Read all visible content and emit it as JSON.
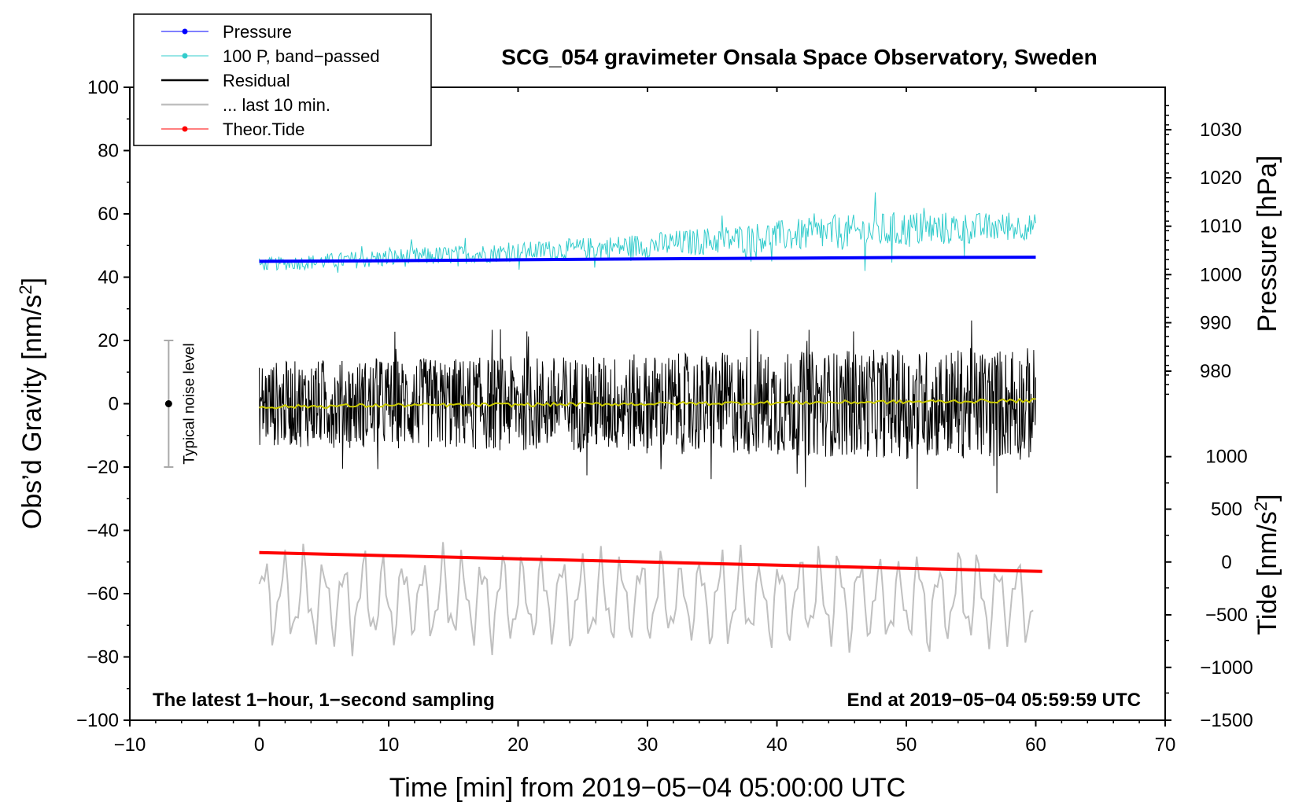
{
  "chart_data": {
    "type": "line",
    "title": "SCG_054 gravimeter Onsala Space Observatory, Sweden",
    "xlabel": "Time [min] from 2019−05−04 05:00:00 UTC",
    "ylabel": "Obs’d Gravity [nm/s",
    "ylabel_sup": "2",
    "ylabel_end": "]",
    "y2label": "Pressure [hPa]",
    "y3label": "Tide [nm/s",
    "y3label_sup": "2",
    "y3label_end": "]",
    "xlim": [
      -10,
      70
    ],
    "ylim": [
      -100,
      100
    ],
    "x_ticks": [
      -10,
      0,
      10,
      20,
      30,
      40,
      50,
      60,
      70
    ],
    "x_tick_labels": [
      "−10",
      "0",
      "10",
      "20",
      "30",
      "40",
      "50",
      "60",
      "70"
    ],
    "y_ticks": [
      100,
      80,
      60,
      40,
      20,
      0,
      -20,
      -40,
      -60,
      -80,
      -100
    ],
    "y_tick_labels": [
      "100",
      "80",
      "60",
      "40",
      "20",
      "0",
      "−20",
      "−40",
      "−60",
      "−80",
      "−100"
    ],
    "pressure_axis": {
      "ticks": [
        1030,
        1020,
        1010,
        1000,
        990,
        980
      ],
      "tick_labels": [
        "1030",
        "1020",
        "1010",
        "1000",
        "990",
        "980"
      ],
      "gravity_equiv": [
        86.6,
        71.4,
        56.1,
        40.8,
        25.6,
        10.3
      ]
    },
    "tide_axis": {
      "ticks": [
        1000,
        500,
        0,
        -500,
        -1000,
        -1500
      ],
      "tick_labels": [
        "1000",
        "500",
        "0",
        "−500",
        "−1000",
        "−1500"
      ],
      "gravity_equiv": [
        -16.7,
        -33.3,
        -50.0,
        -66.7,
        -83.3,
        -100.0
      ]
    },
    "legend": [
      {
        "label": "Pressure",
        "color": "#0000ff",
        "marker": true,
        "width": 1
      },
      {
        "label": "100 P, band−passed",
        "color": "#33cccc",
        "marker": true,
        "width": 1
      },
      {
        "label": "Residual",
        "color": "#000000",
        "marker": false,
        "width": 2.5
      },
      {
        "label": "... last 10 min.",
        "color": "#c0c0c0",
        "marker": false,
        "width": 2.5
      },
      {
        "label": "Theor.Tide",
        "color": "#ff0000",
        "marker": true,
        "width": 1
      }
    ],
    "annotations": {
      "bottom_left": "The latest 1−hour, 1−second sampling",
      "bottom_right": "End at 2019−05−04 05:59:59 UTC",
      "noise_label": "Typical noise level"
    },
    "noise_bar": {
      "x": -7,
      "center": 0,
      "half_range": 20
    },
    "series": [
      {
        "name": "Pressure",
        "color": "#0000ff",
        "x": [
          0,
          10,
          20,
          30,
          40,
          50,
          60
        ],
        "y": [
          45.0,
          45.2,
          45.5,
          45.8,
          46.0,
          46.2,
          46.3
        ]
      },
      {
        "name": "100 P, band-passed",
        "color": "#33cccc",
        "x": [
          0,
          10,
          20,
          30,
          40,
          50,
          60
        ],
        "y": [
          44,
          46,
          48,
          50,
          53,
          55,
          56
        ],
        "amplitude": [
          2,
          3,
          3,
          4,
          5,
          6,
          4
        ]
      },
      {
        "name": "Residual",
        "color": "#000000",
        "x": [
          0,
          60
        ],
        "y": [
          0,
          0
        ],
        "amplitude": [
          15,
          20
        ]
      },
      {
        "name": "Residual smoothed",
        "color": "#cccc00",
        "x": [
          0,
          10,
          20,
          30,
          40,
          50,
          60
        ],
        "y": [
          -1,
          -0.5,
          -0.3,
          0,
          0.3,
          0.6,
          1
        ]
      },
      {
        "name": "... last 10 min.",
        "color": "#c0c0c0",
        "x": [
          0,
          60
        ],
        "y": [
          -62,
          -62
        ],
        "amplitude": [
          15,
          15
        ]
      },
      {
        "name": "Theor.Tide",
        "color": "#ff0000",
        "x": [
          0,
          10,
          20,
          30,
          40,
          50,
          60.5
        ],
        "y": [
          -47,
          -48,
          -49,
          -50,
          -51,
          -52,
          -53
        ]
      }
    ]
  }
}
